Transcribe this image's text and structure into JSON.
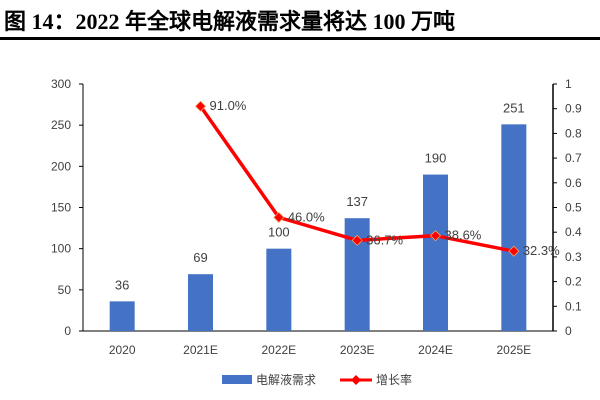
{
  "title": "图 14：2022 年全球电解液需求量将达 100 万吨",
  "chart_data": {
    "type": "bar+line",
    "title": "图 14：2022 年全球电解液需求量将达 100 万吨",
    "categories": [
      "2020",
      "2021E",
      "2022E",
      "2023E",
      "2024E",
      "2025E"
    ],
    "series": [
      {
        "name": "电解液需求",
        "type": "bar",
        "axis": "left",
        "color": "#4472C4",
        "values": [
          36,
          69,
          100,
          137,
          190,
          251
        ],
        "labels": [
          "36",
          "69",
          "100",
          "137",
          "190",
          "251"
        ]
      },
      {
        "name": "增长率",
        "type": "line",
        "axis": "right",
        "color": "#FF0000",
        "values": [
          null,
          0.91,
          0.46,
          0.367,
          0.386,
          0.323
        ],
        "labels": [
          null,
          "91.0%",
          "46.0%",
          "36.7%",
          "38.6%",
          "32.3%"
        ]
      }
    ],
    "y_left": {
      "range": [
        0,
        300
      ],
      "ticks": [
        "0",
        "50",
        "100",
        "150",
        "200",
        "250",
        "300"
      ]
    },
    "y_right": {
      "range": [
        0,
        1
      ],
      "ticks": [
        "0",
        "0.1",
        "0.2",
        "0.3",
        "0.4",
        "0.5",
        "0.6",
        "0.7",
        "0.8",
        "0.9",
        "1"
      ]
    },
    "grid": false,
    "legend": "bottom"
  }
}
